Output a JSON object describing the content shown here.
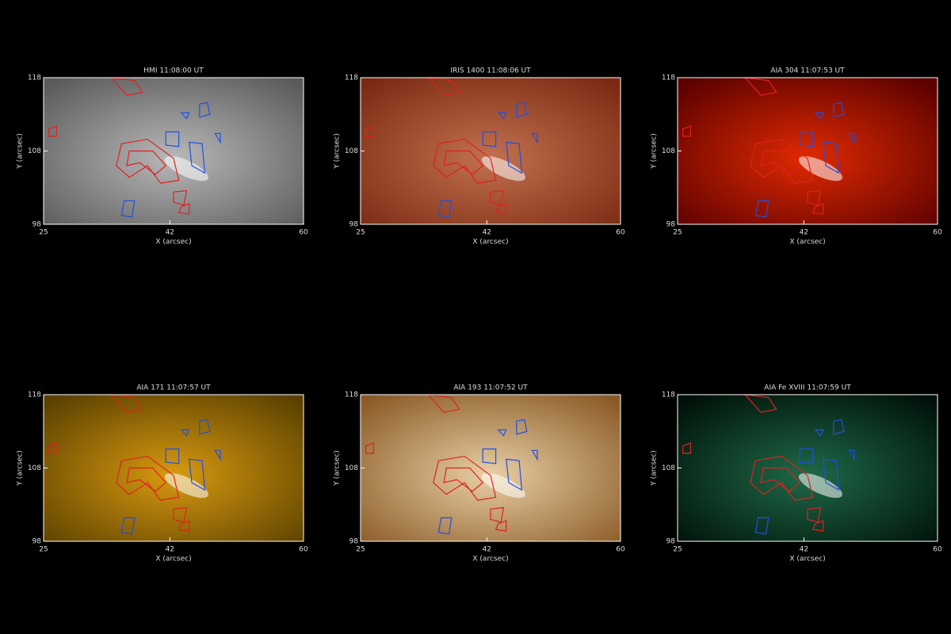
{
  "chart_data": [
    {
      "type": "image",
      "title": "HMI 11:08:00 UT",
      "xlabel": "X (arcsec)",
      "ylabel": "Y (arcsec)",
      "xlim": [
        25,
        60
      ],
      "ylim": [
        98,
        118
      ],
      "xticks": [
        25,
        42,
        60
      ],
      "yticks": [
        98,
        108,
        118
      ],
      "colors": [
        "#5a5a5a",
        "#b8b8b8"
      ]
    },
    {
      "type": "image",
      "title": "IRIS 1400 11:08:06 UT",
      "xlabel": "X (arcsec)",
      "ylabel": "Y (arcsec)",
      "xlim": [
        25,
        60
      ],
      "ylim": [
        98,
        118
      ],
      "xticks": [
        25,
        42,
        60
      ],
      "yticks": [
        98,
        108,
        118
      ],
      "colors": [
        "#7a2a12",
        "#c2714f"
      ]
    },
    {
      "type": "image",
      "title": "AIA 304 11:07:53 UT",
      "xlabel": "X (arcsec)",
      "ylabel": "Y (arcsec)",
      "xlim": [
        25,
        60
      ],
      "ylim": [
        98,
        118
      ],
      "xticks": [
        25,
        42,
        60
      ],
      "yticks": [
        98,
        108,
        118
      ],
      "colors": [
        "#5a0000",
        "#e02a00"
      ]
    },
    {
      "type": "image",
      "title": "AIA 171 11:07:57 UT",
      "xlabel": "X (arcsec)",
      "ylabel": "Y (arcsec)",
      "xlim": [
        25,
        60
      ],
      "ylim": [
        98,
        118
      ],
      "xticks": [
        25,
        42,
        60
      ],
      "yticks": [
        98,
        108,
        118
      ],
      "colors": [
        "#5a4000",
        "#d89a10"
      ]
    },
    {
      "type": "image",
      "title": "AIA 193 11:07:52 UT",
      "xlabel": "X (arcsec)",
      "ylabel": "Y (arcsec)",
      "xlim": [
        25,
        60
      ],
      "ylim": [
        98,
        118
      ],
      "xticks": [
        25,
        42,
        60
      ],
      "yticks": [
        98,
        108,
        118
      ],
      "colors": [
        "#8a5a26",
        "#e8cfa6"
      ]
    },
    {
      "type": "image",
      "title": "AIA Fe XVIII 11:07:59 UT",
      "xlabel": "X (arcsec)",
      "ylabel": "Y (arcsec)",
      "xlim": [
        25,
        60
      ],
      "ylim": [
        98,
        118
      ],
      "xticks": [
        25,
        42,
        60
      ],
      "yticks": [
        98,
        108,
        118
      ],
      "colors": [
        "#001008",
        "#1e6a48"
      ]
    }
  ]
}
